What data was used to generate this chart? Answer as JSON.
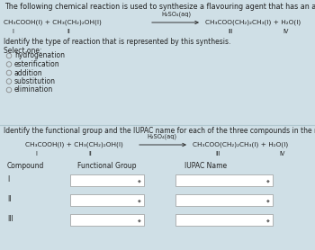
{
  "bg_color": "#cfdfe6",
  "title": "The following chemical reaction is used to synthesize a flavouring agent that has an aroma similar to bananas.",
  "catalyst": "H₂SO₄(aq)",
  "reactants": "CH₃COOH(l) + CH₃(CH₂)₂OH(l)",
  "products": "CH₃COO(CH₂)₂CH₃(l) + H₂O(l)",
  "roman1": [
    "I",
    "II",
    "III",
    "IV"
  ],
  "identify_text": "Identify the type of reaction that is represented by this synthesis.",
  "select_one": "Select one:",
  "options": [
    "hydrogenation",
    "esterification",
    "addition",
    "substitution",
    "elimination"
  ],
  "section2_title": "Identify the functional group and the IUPAC name for each of the three compounds in the reaction below:",
  "table_header": [
    "Compound",
    "Functional Group",
    "IUPAC Name"
  ],
  "table_rows": [
    "I",
    "II",
    "III"
  ],
  "text_color": "#222222",
  "box_color": "#ffffff",
  "box_border": "#999999",
  "divider_color": "#b0c8d0",
  "circle_color": "#888888",
  "arrow_color": "#333333",
  "diamond_color": "#666666"
}
